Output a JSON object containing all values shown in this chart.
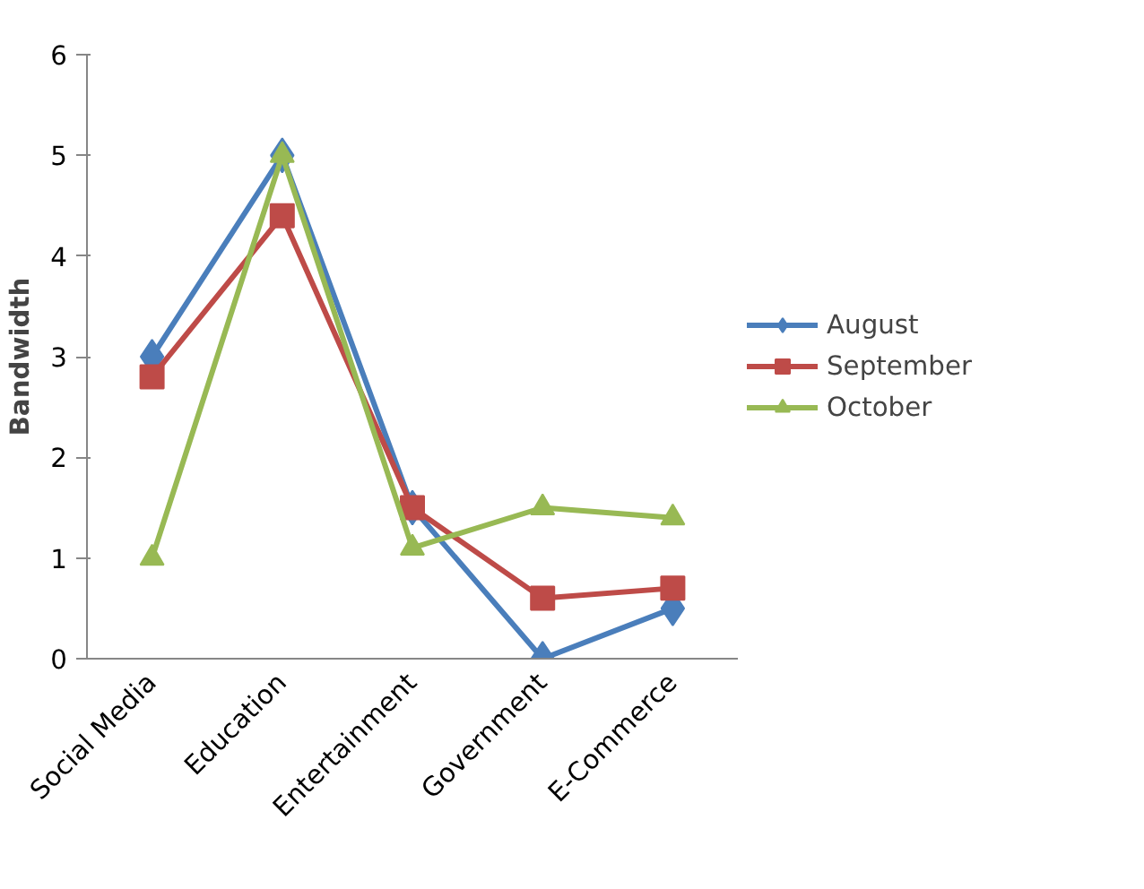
{
  "chart_data": {
    "type": "line",
    "ylabel": "Bandwidth",
    "categories": [
      "Social Media",
      "Education",
      "Entertainment",
      "Government",
      "E-Commerce"
    ],
    "ylim": [
      0,
      6
    ],
    "yticks": [
      0,
      1,
      2,
      3,
      4,
      5,
      6
    ],
    "grid": false,
    "legend": "right",
    "series": [
      {
        "name": "August",
        "color": "#4a7ebb",
        "marker": "diamond",
        "values": [
          3,
          5,
          1.5,
          0,
          0.5
        ]
      },
      {
        "name": "September",
        "color": "#be4b48",
        "marker": "square",
        "values": [
          2.8,
          4.4,
          1.5,
          0.6,
          0.7
        ]
      },
      {
        "name": "October",
        "color": "#98b954",
        "marker": "triangle",
        "values": [
          1,
          5,
          1.1,
          1.5,
          1.4
        ]
      }
    ]
  }
}
